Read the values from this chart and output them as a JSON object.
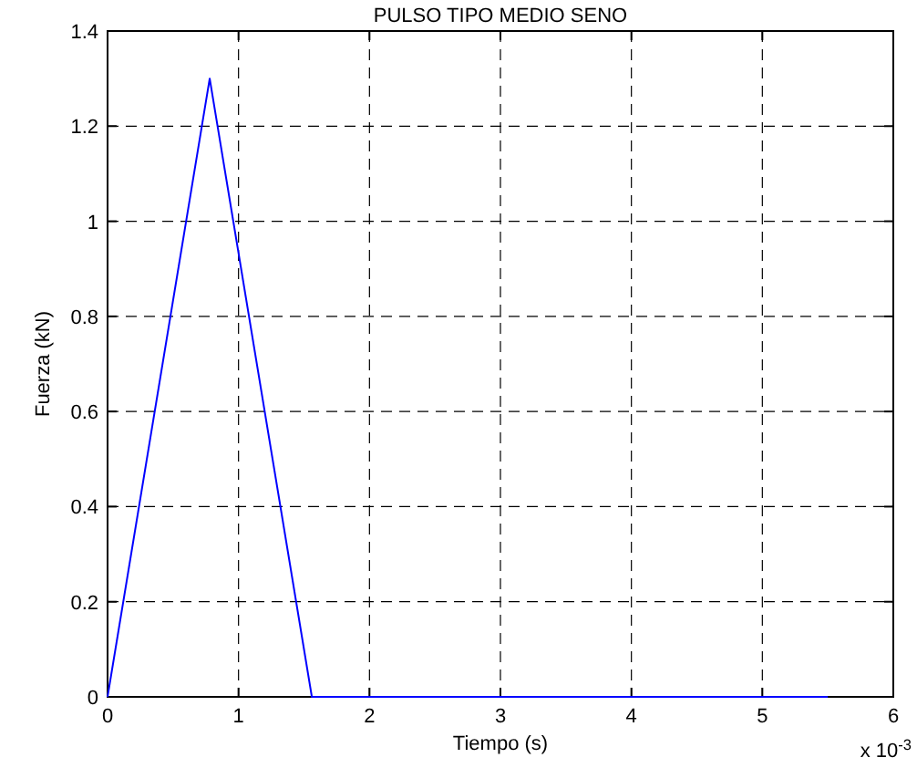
{
  "chart_data": {
    "type": "line",
    "title": "PULSO TIPO MEDIO SENO",
    "xlabel": "Tiempo (s)",
    "ylabel": "Fuerza (kN)",
    "annotations": [
      "x 10$^{-3}$"
    ],
    "x": [
      0,
      0.78,
      1.56,
      5.5
    ],
    "series": [
      {
        "color": "#0000ff",
        "values": [
          0,
          1.3,
          0,
          0
        ]
      }
    ],
    "xlim": [
      0,
      6
    ],
    "xticks": [
      0,
      1,
      2,
      3,
      4,
      5,
      6
    ],
    "ylim": [
      0,
      1.4
    ],
    "yticks": [
      0,
      0.2,
      0.4,
      0.6,
      0.8,
      1,
      1.2,
      1.4
    ],
    "grid": true,
    "line_style": "solid"
  }
}
